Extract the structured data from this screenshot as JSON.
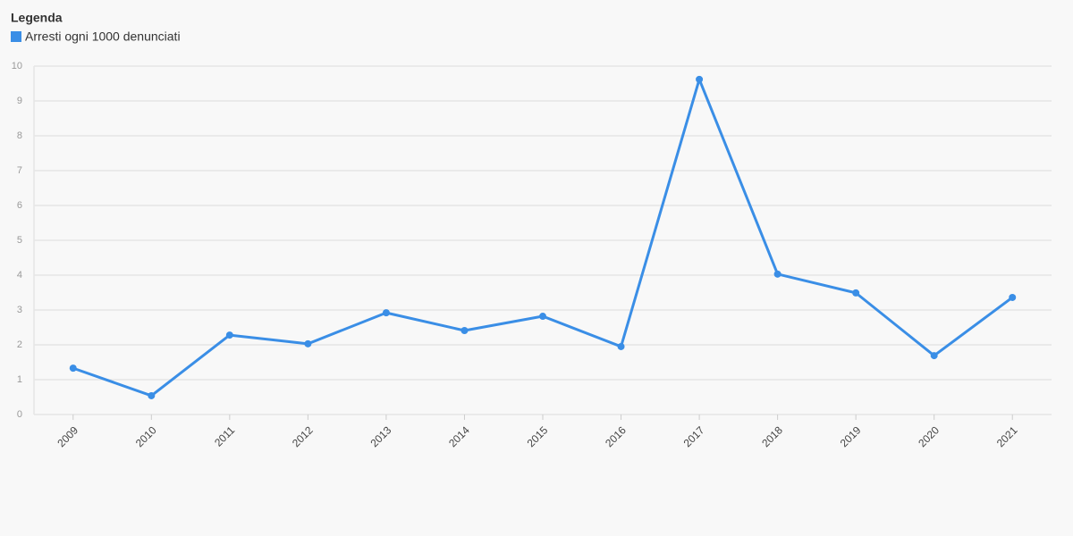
{
  "chart_data": {
    "type": "line",
    "legend_title": "Legenda",
    "categories": [
      "2009",
      "2010",
      "2011",
      "2012",
      "2013",
      "2014",
      "2015",
      "2016",
      "2017",
      "2018",
      "2019",
      "2020",
      "2021"
    ],
    "series": [
      {
        "name": "Arresti ogni 1000 denunciati",
        "color": "#3a8ee6",
        "values": [
          1.33,
          0.54,
          2.28,
          2.03,
          2.92,
          2.41,
          2.82,
          1.95,
          9.62,
          4.03,
          3.49,
          1.69,
          3.36
        ]
      }
    ],
    "ylim": [
      0,
      10
    ],
    "yticks": [
      0,
      1,
      2,
      3,
      4,
      5,
      6,
      7,
      8,
      9,
      10
    ],
    "grid": true
  }
}
